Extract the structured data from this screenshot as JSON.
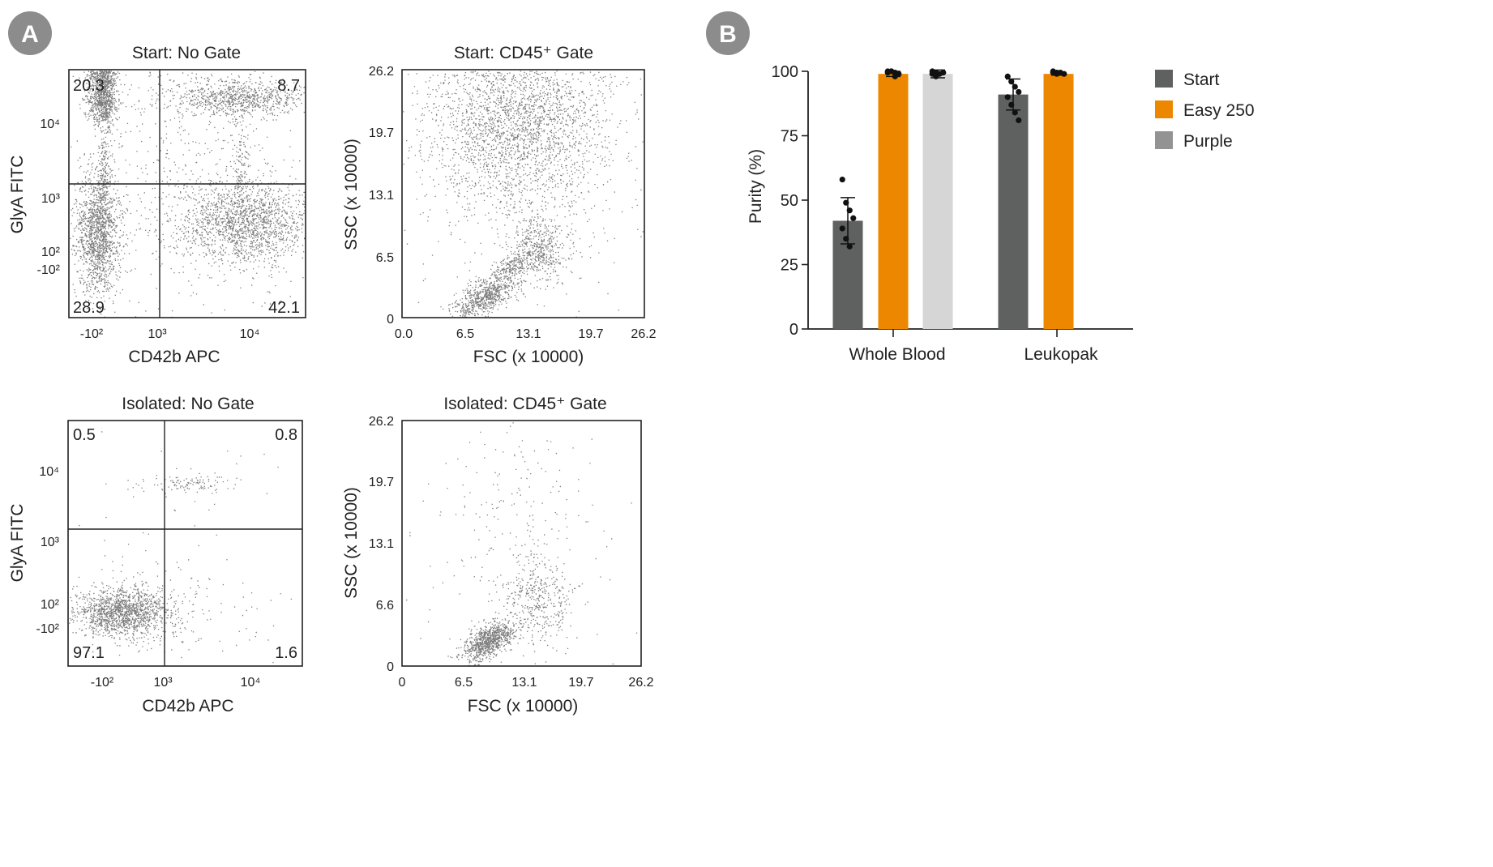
{
  "panels": [
    {
      "letter": "A",
      "badge_color": "#8c8c8c"
    },
    {
      "letter": "B",
      "badge_color": "#8c8c8c"
    }
  ],
  "chart_data": [
    {
      "type": "scatter",
      "title": "Start: No Gate",
      "xlabel": "CD42b APC",
      "ylabel": "GlyA FITC",
      "x_ticks": [
        "-10²",
        "10³",
        "10⁴"
      ],
      "y_ticks": [
        "10⁴",
        "10³",
        "10²",
        "-10²"
      ],
      "quadrant_labels": {
        "top_left": "20.3",
        "top_right": "8.7",
        "bottom_left": "28.9",
        "bottom_right": "42.1"
      }
    },
    {
      "type": "scatter",
      "title": "Start: CD45⁺ Gate",
      "xlabel": "FSC (x 10000)",
      "ylabel": "SSC (x 10000)",
      "x_ticks": [
        "0.0",
        "6.5",
        "13.1",
        "19.7",
        "26.2"
      ],
      "y_ticks": [
        "0",
        "6.5",
        "13.1",
        "19.7",
        "26.2"
      ],
      "xlim": [
        0,
        26.2
      ],
      "ylim": [
        0,
        26.2
      ]
    },
    {
      "type": "scatter",
      "title": "Isolated: No Gate",
      "xlabel": "CD42b APC",
      "ylabel": "GlyA FITC",
      "x_ticks": [
        "-10²",
        "10³",
        "10⁴"
      ],
      "y_ticks": [
        "10⁴",
        "10³",
        "10²",
        "-10²"
      ],
      "quadrant_labels": {
        "top_left": "0.5",
        "top_right": "0.8",
        "bottom_left": "97.1",
        "bottom_right": "1.6"
      }
    },
    {
      "type": "scatter",
      "title": "Isolated: CD45⁺ Gate",
      "xlabel": "FSC (x 10000)",
      "ylabel": "SSC (x 10000)",
      "x_ticks": [
        "0",
        "6.5",
        "13.1",
        "19.7",
        "26.2"
      ],
      "y_ticks": [
        "0",
        "6.6",
        "13.1",
        "19.7",
        "26.2"
      ],
      "xlim": [
        0,
        26.2
      ],
      "ylim": [
        0,
        26.2
      ]
    },
    {
      "type": "bar",
      "title": "",
      "xlabel": "",
      "ylabel": "Purity (%)",
      "categories": [
        "Whole Blood",
        "Leukopak"
      ],
      "ylim": [
        0,
        100
      ],
      "y_ticks": [
        "0",
        "25",
        "50",
        "75",
        "100"
      ],
      "series": [
        {
          "name": "Start",
          "color": "#5f6060",
          "values": [
            42,
            91
          ],
          "errors": [
            9,
            6
          ],
          "points": [
            [
              58,
              49,
              46,
              43,
              39,
              35,
              32
            ],
            [
              98,
              96,
              94,
              92,
              90,
              87,
              84,
              81
            ]
          ]
        },
        {
          "name": "Easy 250",
          "color": "#ee8700",
          "values": [
            99,
            99
          ],
          "errors": [
            1,
            0.5
          ],
          "points": [
            [
              100,
              100,
              99.5,
              99,
              99.5,
              100,
              98
            ],
            [
              100,
              99.5,
              99.5,
              99,
              99.5,
              99
            ]
          ]
        },
        {
          "name": "Purple",
          "color": "#d6d6d6",
          "legend_color": "#939393",
          "values": [
            99,
            null
          ],
          "errors": [
            1.5,
            null
          ],
          "points": [
            [
              100,
              99.5,
              99,
              99.5,
              99,
              98
            ],
            []
          ]
        }
      ]
    }
  ]
}
